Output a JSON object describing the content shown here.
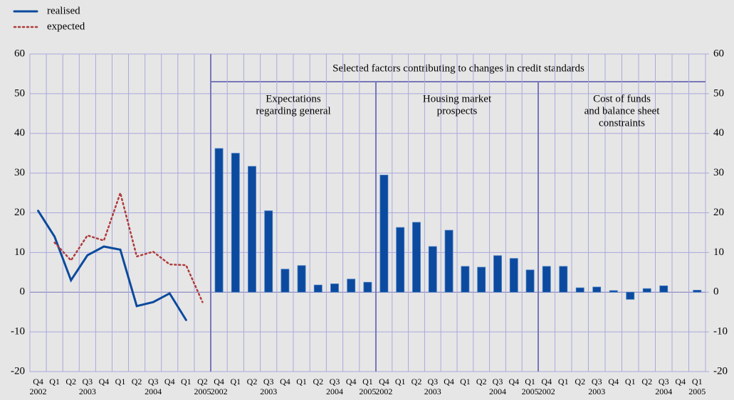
{
  "chart_data": {
    "type": "line",
    "header": "Selected factors contributing to changes in credit standards",
    "ylim": [
      -20,
      60
    ],
    "yticks": [
      -20,
      -10,
      0,
      10,
      20,
      30,
      40,
      50,
      60
    ],
    "y2lim": [
      -20,
      60
    ],
    "y2ticks": [
      -20,
      -10,
      0,
      10,
      20,
      30,
      40,
      50,
      60
    ],
    "grid": true,
    "categories": [
      "Q4",
      "Q1",
      "Q2",
      "Q3",
      "Q4",
      "Q1",
      "Q2",
      "Q3",
      "Q4",
      "Q1",
      "Q2"
    ],
    "years": [
      "2002",
      null,
      null,
      "2003",
      null,
      null,
      null,
      "2004",
      null,
      null,
      "2005"
    ],
    "series": [
      {
        "name": "realised",
        "color": "#0b4a9e",
        "style": "solid",
        "values": [
          20.5,
          14,
          3,
          9.3,
          11.5,
          10.7,
          -3.5,
          -2.5,
          -0.3,
          -7,
          null
        ]
      },
      {
        "name": "expected",
        "color": "#b03a3a",
        "style": "dotted",
        "values": [
          null,
          12.5,
          8,
          14.3,
          13,
          25,
          9,
          10.2,
          7,
          6.8,
          -2.5
        ]
      }
    ],
    "panels": [
      {
        "type": "bar",
        "title_lines": [
          "Expectations",
          "regarding general"
        ],
        "color": "#0b4a9e",
        "categories": [
          "Q4",
          "Q1",
          "Q2",
          "Q3",
          "Q4",
          "Q1",
          "Q2",
          "Q3",
          "Q4",
          "Q1"
        ],
        "years": [
          "2002",
          null,
          null,
          "2003",
          null,
          null,
          null,
          "2004",
          null,
          "2005"
        ],
        "values": [
          36.2,
          35,
          31.7,
          20.5,
          5.8,
          6.7,
          1.8,
          2.1,
          3.3,
          2.5
        ]
      },
      {
        "type": "bar",
        "title_lines": [
          "Housing market",
          "prospects"
        ],
        "color": "#0b4a9e",
        "categories": [
          "Q4",
          "Q1",
          "Q2",
          "Q3",
          "Q4",
          "Q1",
          "Q2",
          "Q3",
          "Q4",
          "Q1"
        ],
        "years": [
          "2002",
          null,
          null,
          "2003",
          null,
          null,
          null,
          "2004",
          null,
          "2005"
        ],
        "values": [
          29.5,
          16.3,
          17.6,
          11.5,
          15.6,
          6.5,
          6.3,
          9.2,
          8.5,
          5.6
        ]
      },
      {
        "type": "bar",
        "title_lines": [
          "Cost of funds",
          "and balance sheet",
          "constraints"
        ],
        "color": "#0b4a9e",
        "categories": [
          "Q4",
          "Q1",
          "Q2",
          "Q3",
          "Q4",
          "Q1",
          "Q2",
          "Q3",
          "Q4",
          "Q1"
        ],
        "years": [
          "2002",
          null,
          null,
          "2003",
          null,
          null,
          null,
          "2004",
          null,
          "2005"
        ],
        "values": [
          6.5,
          6.5,
          1.1,
          1.3,
          0.4,
          -1.8,
          0.9,
          1.6,
          0,
          0.5
        ]
      }
    ]
  }
}
